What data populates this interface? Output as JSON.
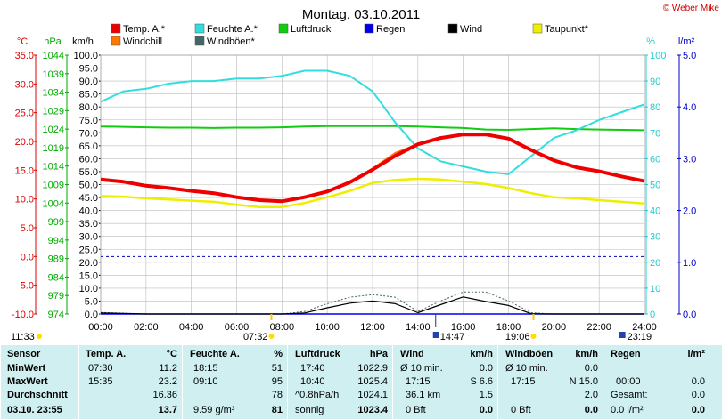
{
  "header": {
    "title": "Montag, 03.10.2011",
    "brand": "© Weber Mike",
    "brand_color": "#cc0000"
  },
  "legend": [
    {
      "name": "Temp. A.*",
      "color": "#ee0000"
    },
    {
      "name": "Feuchte A.*",
      "color": "#33dddd"
    },
    {
      "name": "Luftdruck",
      "color": "#11cc11"
    },
    {
      "name": "Regen",
      "color": "#0000ee"
    },
    {
      "name": "Wind",
      "color": "#000000"
    },
    {
      "name": "Taupunkt*",
      "color": "#eeee00"
    },
    {
      "name": "Windchill",
      "color": "#ff7700"
    },
    {
      "name": "Windböen*",
      "color": "#446666"
    }
  ],
  "axes": {
    "unit_c": "°C",
    "unit_hpa": "hPa",
    "unit_kmh": "km/h",
    "unit_pct": "%",
    "unit_lm2": "l/m²",
    "temp_ticks": [
      "35.0",
      "30.0",
      "25.0",
      "20.0",
      "15.0",
      "10.0",
      "5.0",
      "0.0",
      "-5.0",
      "-10.0"
    ],
    "hpa_ticks": [
      "1044",
      "1039",
      "1034",
      "1029",
      "1024",
      "1019",
      "1014",
      "1009",
      "1004",
      "999",
      "994",
      "989",
      "984",
      "979",
      "974"
    ],
    "kmh_ticks": [
      "100.0",
      "95.0",
      "90.0",
      "85.0",
      "80.0",
      "75.0",
      "70.0",
      "65.0",
      "60.0",
      "55.0",
      "50.0",
      "45.0",
      "40.0",
      "35.0",
      "30.0",
      "25.0",
      "20.0",
      "15.0",
      "10.0",
      "5.0",
      "0.0"
    ],
    "pct_ticks": [
      "100",
      "90",
      "80",
      "70",
      "60",
      "50",
      "40",
      "30",
      "20",
      "10",
      "0"
    ],
    "lm2_ticks": [
      "5.0",
      "4.0",
      "3.0",
      "2.0",
      "1.0",
      "0.0"
    ],
    "time_ticks": [
      "00:00",
      "02:00",
      "04:00",
      "06:00",
      "08:00",
      "10:00",
      "12:00",
      "14:00",
      "16:00",
      "18:00",
      "20:00",
      "22:00",
      "24:00"
    ]
  },
  "sun_markers": {
    "left_time": "11:33",
    "sunrise": "07:32",
    "noon": "14:47",
    "sunset": "19:06",
    "right_time": "23:19"
  },
  "chart_data": {
    "type": "line",
    "title": "Montag, 03.10.2011",
    "x": [
      0,
      1,
      2,
      3,
      4,
      5,
      6,
      7,
      8,
      9,
      10,
      11,
      12,
      13,
      14,
      15,
      16,
      17,
      18,
      19,
      20,
      21,
      22,
      23,
      24
    ],
    "xlabel": "",
    "xlim": [
      0,
      24
    ],
    "series": [
      {
        "name": "Temp. A.*",
        "unit": "°C",
        "values": [
          13.4,
          13.0,
          12.3,
          11.9,
          11.4,
          11.0,
          10.3,
          9.8,
          9.6,
          10.3,
          11.3,
          12.9,
          15.1,
          17.5,
          19.5,
          20.6,
          21.2,
          21.2,
          20.5,
          18.5,
          16.7,
          15.5,
          14.8,
          13.9,
          13.1
        ]
      },
      {
        "name": "Feuchte A.*",
        "unit": "%",
        "values": [
          82,
          86,
          87,
          89,
          90,
          90,
          91,
          91,
          92,
          94,
          94,
          92,
          86,
          74,
          64,
          59,
          57,
          55,
          54,
          61,
          68,
          71,
          75,
          78,
          81
        ]
      },
      {
        "name": "Luftdruck",
        "unit": "hPa",
        "values": [
          1024.7,
          1024.6,
          1024.5,
          1024.4,
          1024.4,
          1024.3,
          1024.4,
          1024.4,
          1024.5,
          1024.7,
          1024.8,
          1024.8,
          1024.8,
          1024.8,
          1024.7,
          1024.5,
          1024.3,
          1023.9,
          1023.8,
          1024.0,
          1024.2,
          1024.0,
          1023.9,
          1023.8,
          1023.7
        ]
      },
      {
        "name": "Taupunkt*",
        "unit": "°C",
        "values": [
          10.5,
          10.4,
          10.1,
          9.9,
          9.7,
          9.5,
          9.0,
          8.6,
          8.6,
          9.3,
          10.3,
          11.4,
          12.8,
          13.3,
          13.5,
          13.4,
          13.0,
          12.6,
          11.9,
          11.0,
          10.3,
          10.1,
          9.8,
          9.5,
          9.2
        ]
      },
      {
        "name": "Windchill",
        "unit": "°C",
        "values": [
          13.4,
          13.0,
          12.3,
          11.9,
          11.4,
          11.0,
          10.3,
          9.8,
          9.6,
          10.3,
          11.3,
          12.9,
          15.3,
          18.0,
          19.5,
          20.6,
          21.2,
          21.2,
          20.5,
          18.5,
          16.7,
          15.5,
          14.8,
          13.9,
          13.1
        ]
      },
      {
        "name": "Wind",
        "unit": "km/h",
        "values": [
          0.4,
          0.2,
          0,
          0,
          0,
          0,
          0,
          0,
          0,
          0.4,
          2.4,
          4.2,
          5.0,
          4.0,
          0.5,
          3.6,
          6.6,
          4.8,
          3.3,
          0.1,
          0,
          0,
          0,
          0,
          0
        ]
      },
      {
        "name": "Windböen*",
        "unit": "km/h",
        "values": [
          0.6,
          0.3,
          0,
          0,
          0,
          0,
          0,
          0,
          0,
          1.0,
          4.0,
          6.5,
          7.5,
          6.5,
          1.0,
          5.0,
          8.5,
          8.5,
          5.0,
          0.5,
          0,
          0,
          0,
          0,
          0
        ]
      },
      {
        "name": "Regen",
        "unit": "l/m²",
        "values": [
          0,
          0,
          0,
          0,
          0,
          0,
          0,
          0,
          0,
          0,
          0,
          0,
          0,
          0,
          0,
          0,
          0,
          0,
          0,
          0,
          0,
          0,
          0,
          0,
          0
        ]
      }
    ],
    "ranges": {
      "temp": [
        -10,
        35
      ],
      "hpa": [
        974,
        1044
      ],
      "kmh": [
        0,
        100
      ],
      "pct": [
        0,
        100
      ],
      "lm2": [
        0,
        5
      ]
    },
    "freezing_line_c": 0.0
  },
  "table": {
    "rows_header": {
      "sensor": "Sensor",
      "min": "MinWert",
      "max": "MaxWert",
      "avg": "Durchschnitt",
      "now": "03.10. 23:55"
    },
    "temp": {
      "title": "Temp. A.",
      "unit": "°C",
      "min_t": "07:30",
      "min_v": "11.2",
      "max_t": "15:35",
      "max_v": "23.2",
      "avg": "16.36",
      "now": "13.7"
    },
    "humid": {
      "title": "Feuchte A.",
      "unit": "%",
      "min_t": "18:15",
      "min_v": "51",
      "max_t": "09:10",
      "max_v": "95",
      "avg": "78",
      "now_extra": "9.59 g/m³",
      "now": "81"
    },
    "press": {
      "title": "Luftdruck",
      "unit": "hPa",
      "min_t": "17:40",
      "min_v": "1022.9",
      "max_t": "10:40",
      "max_v": "1025.4",
      "avg_l": "^0.8hPa/h",
      "avg": "1024.1",
      "now_l": "sonnig",
      "now": "1023.4"
    },
    "wind": {
      "title": "Wind",
      "unit": "km/h",
      "min_l": "Ø 10 min.",
      "min_v": "0.0",
      "max_l": "17:15",
      "max_m": "S 6.6",
      "avg_l": "36.1 km",
      "avg": "1.5",
      "now_l": "0 Bft",
      "now": "0.0"
    },
    "gust": {
      "title": "Windböen",
      "unit": "km/h",
      "min_l": "Ø 10 min.",
      "min_v": "0.0",
      "max_l": "17:15",
      "max_m": "N 15.0",
      "avg": "2.0",
      "now_l": "0 Bft",
      "now": "0.0"
    },
    "rain": {
      "title": "Regen",
      "unit": "l/m²",
      "max_l": "00:00",
      "max_v": "0.0",
      "avg_l": "Gesamt:",
      "avg": "0.0",
      "now_l": "0.0 l/m²",
      "now": "0.0"
    }
  }
}
